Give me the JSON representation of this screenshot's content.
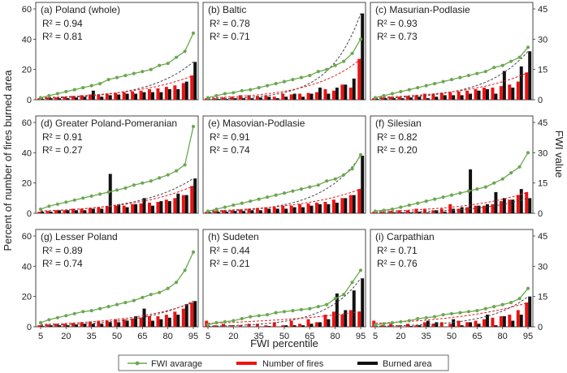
{
  "colors": {
    "fwi": "#6aa84f",
    "fires": "#ee1111",
    "burned": "#111111",
    "r2_red": "#e8191e",
    "fit_red": "#e8191e",
    "fit_black": "#444444"
  },
  "figure": {
    "ylabel_left": "Percent of number of fires burned area",
    "ylabel_right": "FWI value",
    "xlabel": "FWI percentile",
    "x_ticks": [
      "5",
      "20",
      "35",
      "50",
      "65",
      "80",
      "95"
    ],
    "left_ticks": [
      "0",
      "20",
      "40",
      "60"
    ],
    "right_ticks": [
      "0",
      "15",
      "30",
      "45"
    ],
    "legend": {
      "fwi": "FWI avarage",
      "fires": "Number of fires",
      "burned": "Burned area"
    }
  },
  "chart_data": [
    {
      "type": "bar",
      "panel": "(a)",
      "region": "Poland (whole)",
      "r2_fires": "0.94",
      "r2_burned": "0.81",
      "x": [
        5,
        10,
        15,
        20,
        25,
        30,
        35,
        40,
        45,
        50,
        55,
        60,
        65,
        70,
        75,
        80,
        85,
        90,
        95
      ],
      "ylim": [
        0,
        60
      ],
      "y2lim": [
        0,
        45
      ],
      "fwi": [
        1,
        2,
        3,
        4,
        5,
        6,
        7,
        8,
        10,
        11,
        12,
        13,
        14,
        15,
        17,
        18,
        21,
        24,
        33
      ],
      "fires": [
        1,
        1.5,
        1.5,
        2,
        2.5,
        3,
        3.5,
        3.5,
        4,
        4.5,
        5,
        5.5,
        6,
        7,
        7.5,
        8.5,
        9.5,
        11,
        16
      ],
      "burned": [
        0.5,
        1,
        1,
        1,
        1.5,
        2,
        6,
        2,
        3,
        3.5,
        4,
        4,
        5,
        5,
        5,
        7,
        7,
        12,
        25
      ]
    },
    {
      "type": "bar",
      "panel": "(b)",
      "region": "Baltic",
      "r2_fires": "0.78",
      "r2_burned": "0.71",
      "x": [
        5,
        10,
        15,
        20,
        25,
        30,
        35,
        40,
        45,
        50,
        55,
        60,
        65,
        70,
        75,
        80,
        85,
        90,
        95
      ],
      "ylim": [
        0,
        60
      ],
      "y2lim": [
        0,
        45
      ],
      "fwi": [
        1,
        2,
        3,
        3.5,
        4.5,
        5,
        6,
        7,
        8,
        9,
        10,
        11,
        12,
        14,
        15,
        17,
        19,
        23,
        30
      ],
      "fires": [
        1,
        1,
        1.5,
        2,
        3,
        3,
        2.5,
        3,
        2,
        4,
        3.5,
        4,
        4.5,
        5,
        7,
        6,
        10,
        8,
        27
      ],
      "burned": [
        0,
        0.5,
        0.5,
        1,
        1,
        1,
        1.5,
        2,
        1,
        2,
        4,
        2,
        4,
        8,
        4,
        8,
        10,
        14,
        57
      ]
    },
    {
      "type": "bar",
      "panel": "(c)",
      "region": "Masurian-Podlasie",
      "r2_fires": "0.93",
      "r2_burned": "0.73",
      "x": [
        5,
        10,
        15,
        20,
        25,
        30,
        35,
        40,
        45,
        50,
        55,
        60,
        65,
        70,
        75,
        80,
        85,
        90,
        95
      ],
      "ylim": [
        0,
        60
      ],
      "y2lim": [
        0,
        45
      ],
      "fwi": [
        1,
        2,
        3,
        4,
        5,
        6,
        7,
        8,
        9,
        10,
        11,
        12,
        13,
        14,
        16,
        17,
        19,
        21,
        26
      ],
      "fires": [
        1,
        1.5,
        2,
        2,
        2.5,
        3,
        4,
        4,
        4.5,
        5,
        5.5,
        6,
        7,
        8,
        8,
        9,
        10,
        12,
        18
      ],
      "burned": [
        0.5,
        1,
        1,
        1,
        1.5,
        2,
        1,
        2,
        3,
        3,
        3,
        4,
        6,
        7,
        4,
        19,
        8,
        22,
        32
      ]
    },
    {
      "type": "bar",
      "panel": "(d)",
      "region": "Greater Poland-Pomeranian",
      "r2_fires": "0.91",
      "r2_burned": "0.27",
      "x": [
        5,
        10,
        15,
        20,
        25,
        30,
        35,
        40,
        45,
        50,
        55,
        60,
        65,
        70,
        75,
        80,
        85,
        90,
        95
      ],
      "ylim": [
        0,
        60
      ],
      "y2lim": [
        0,
        45
      ],
      "fwi": [
        2,
        3.5,
        4.5,
        5.5,
        6.5,
        7.5,
        8.5,
        9.5,
        10.5,
        11.5,
        12.5,
        14,
        15,
        16,
        17.5,
        19,
        21,
        24,
        43
      ],
      "fires": [
        1,
        1.5,
        2,
        2,
        3,
        3,
        3.5,
        4,
        4.5,
        5,
        5,
        6,
        6.5,
        7,
        7.5,
        9,
        10,
        12,
        18
      ],
      "burned": [
        1,
        1,
        2,
        2,
        2,
        2,
        3,
        3,
        26,
        6,
        4,
        6,
        10,
        5,
        8,
        8,
        13,
        12,
        23
      ]
    },
    {
      "type": "bar",
      "panel": "(e)",
      "region": "Masovian-Podlasie",
      "r2_fires": "0.91",
      "r2_burned": "0.74",
      "x": [
        5,
        10,
        15,
        20,
        25,
        30,
        35,
        40,
        45,
        50,
        55,
        60,
        65,
        70,
        75,
        80,
        85,
        90,
        95
      ],
      "ylim": [
        0,
        60
      ],
      "y2lim": [
        0,
        45
      ],
      "fwi": [
        1,
        2,
        3,
        4,
        5,
        6,
        7,
        8,
        9,
        10,
        11,
        12,
        13,
        14,
        16,
        17,
        19,
        22,
        29
      ],
      "fires": [
        1,
        1.5,
        2,
        2,
        2.5,
        3,
        3.5,
        4,
        4,
        5,
        5,
        6,
        6.5,
        7,
        7.5,
        9,
        10,
        12,
        16
      ],
      "burned": [
        0.5,
        1,
        1,
        1.5,
        1.5,
        2,
        2,
        3,
        3,
        3,
        4,
        4,
        5,
        6,
        6,
        7,
        10,
        12,
        38
      ]
    },
    {
      "type": "bar",
      "panel": "(f)",
      "region": "Silesian",
      "r2_fires": "0.82",
      "r2_burned": "0.20",
      "x": [
        5,
        10,
        15,
        20,
        25,
        30,
        35,
        40,
        45,
        50,
        55,
        60,
        65,
        70,
        75,
        80,
        85,
        90,
        95
      ],
      "ylim": [
        0,
        60
      ],
      "y2lim": [
        0,
        45
      ],
      "fwi": [
        1,
        1.5,
        2,
        3,
        4,
        5,
        6,
        7,
        8,
        9,
        10,
        11,
        12,
        13,
        15,
        17,
        20,
        23,
        30
      ],
      "fires": [
        1,
        1,
        1.5,
        2,
        2,
        3,
        3,
        2,
        3,
        6,
        3,
        4,
        5,
        5,
        6,
        8,
        9,
        12,
        14
      ],
      "burned": [
        0,
        0,
        0.5,
        0.5,
        0.5,
        1,
        0.5,
        2,
        1,
        3,
        4,
        29,
        5,
        6,
        14,
        10,
        9,
        16,
        10
      ]
    },
    {
      "type": "bar",
      "panel": "(g)",
      "region": "Lesser Poland",
      "r2_fires": "0.89",
      "r2_burned": "0.74",
      "x": [
        5,
        10,
        15,
        20,
        25,
        30,
        35,
        40,
        45,
        50,
        55,
        60,
        65,
        70,
        75,
        80,
        85,
        90,
        95
      ],
      "ylim": [
        0,
        60
      ],
      "y2lim": [
        0,
        45
      ],
      "fwi": [
        2,
        3.5,
        4.5,
        5.5,
        6.5,
        7.5,
        8,
        9,
        10,
        11,
        12,
        13,
        14.5,
        16,
        17,
        19,
        22,
        28,
        37
      ],
      "fires": [
        1,
        1.5,
        2,
        2,
        2.5,
        3,
        3.5,
        4,
        4,
        5,
        5,
        5.5,
        6,
        7,
        7,
        8,
        10,
        12,
        16
      ],
      "burned": [
        0.5,
        1,
        1,
        1,
        1.5,
        2,
        2,
        2,
        3,
        3,
        4,
        7,
        12,
        4,
        5,
        6,
        8,
        15,
        17
      ]
    },
    {
      "type": "bar",
      "panel": "(h)",
      "region": "Sudeten",
      "r2_fires": "0.44",
      "r2_burned": "0.21",
      "x": [
        5,
        10,
        15,
        20,
        25,
        30,
        35,
        40,
        45,
        50,
        55,
        60,
        65,
        70,
        75,
        80,
        85,
        90,
        95
      ],
      "ylim": [
        0,
        60
      ],
      "y2lim": [
        0,
        45
      ],
      "fwi": [
        1,
        2,
        2.5,
        3,
        4,
        5,
        5.5,
        6,
        7,
        7.5,
        8,
        8.5,
        9,
        10,
        11,
        14,
        16,
        22,
        28
      ],
      "fires": [
        4,
        1,
        2,
        1,
        1,
        2,
        2,
        1,
        3,
        1,
        4,
        2,
        5,
        3,
        8,
        10,
        8,
        11,
        10
      ],
      "burned": [
        0,
        0,
        0,
        0,
        0,
        0,
        0,
        0.5,
        0,
        1,
        1,
        1,
        2,
        3,
        5,
        22,
        11,
        24,
        32
      ]
    },
    {
      "type": "bar",
      "panel": "(i)",
      "region": "Carpathian",
      "r2_fires": "0.71",
      "r2_burned": "0.76",
      "x": [
        5,
        10,
        15,
        20,
        25,
        30,
        35,
        40,
        45,
        50,
        55,
        60,
        65,
        70,
        75,
        80,
        85,
        90,
        95
      ],
      "ylim": [
        0,
        60
      ],
      "y2lim": [
        0,
        45
      ],
      "fwi": [
        1,
        1.5,
        2,
        2.5,
        3,
        4,
        4.5,
        5,
        6,
        6.5,
        7,
        7.5,
        8,
        9,
        10,
        11,
        12,
        14,
        19
      ],
      "fires": [
        4,
        1,
        2,
        1,
        2,
        1,
        3,
        2,
        3,
        2,
        4,
        3,
        4,
        5,
        6,
        7,
        8,
        11,
        16
      ],
      "burned": [
        0,
        0,
        0,
        0,
        0.5,
        1,
        4,
        3,
        0,
        5,
        1,
        3,
        2,
        8,
        1,
        7,
        4,
        8,
        20
      ]
    }
  ]
}
